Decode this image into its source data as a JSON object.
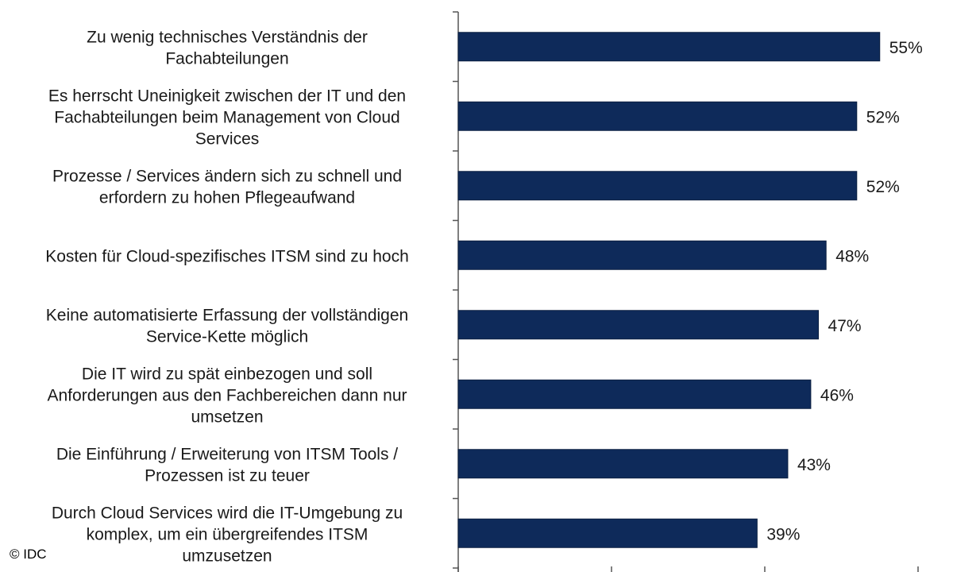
{
  "chart_data": {
    "type": "bar",
    "orientation": "horizontal",
    "categories": [
      [
        "Zu wenig technisches Verständnis der",
        "Fachabteilungen"
      ],
      [
        "Es herrscht Uneinigkeit zwischen der IT und den",
        "Fachabteilungen beim Management von Cloud",
        "Services"
      ],
      [
        "Prozesse / Services ändern sich zu schnell und",
        "erfordern zu hohen Pflegeaufwand"
      ],
      [
        "Kosten für Cloud-spezifisches ITSM sind zu hoch"
      ],
      [
        "Keine automatisierte Erfassung der vollständigen",
        "Service-Kette möglich"
      ],
      [
        "Die IT wird zu spät einbezogen und soll",
        "Anforderungen aus den Fachbereichen dann nur",
        "umsetzen"
      ],
      [
        "Die Einführung / Erweiterung von ITSM Tools /",
        "Prozessen ist zu teuer"
      ],
      [
        "Durch Cloud Services wird die IT-Umgebung  zu",
        "komplex, um ein übergreifendes ITSM",
        "umzusetzen"
      ]
    ],
    "values": [
      55,
      52,
      52,
      48,
      47,
      46,
      43,
      39
    ],
    "value_labels": [
      "55%",
      "52%",
      "52%",
      "48%",
      "47%",
      "46%",
      "43%",
      "39%"
    ],
    "xlim": [
      0,
      60
    ],
    "bar_color": "#0e2a5a",
    "grid": false
  },
  "copyright": "© IDC"
}
